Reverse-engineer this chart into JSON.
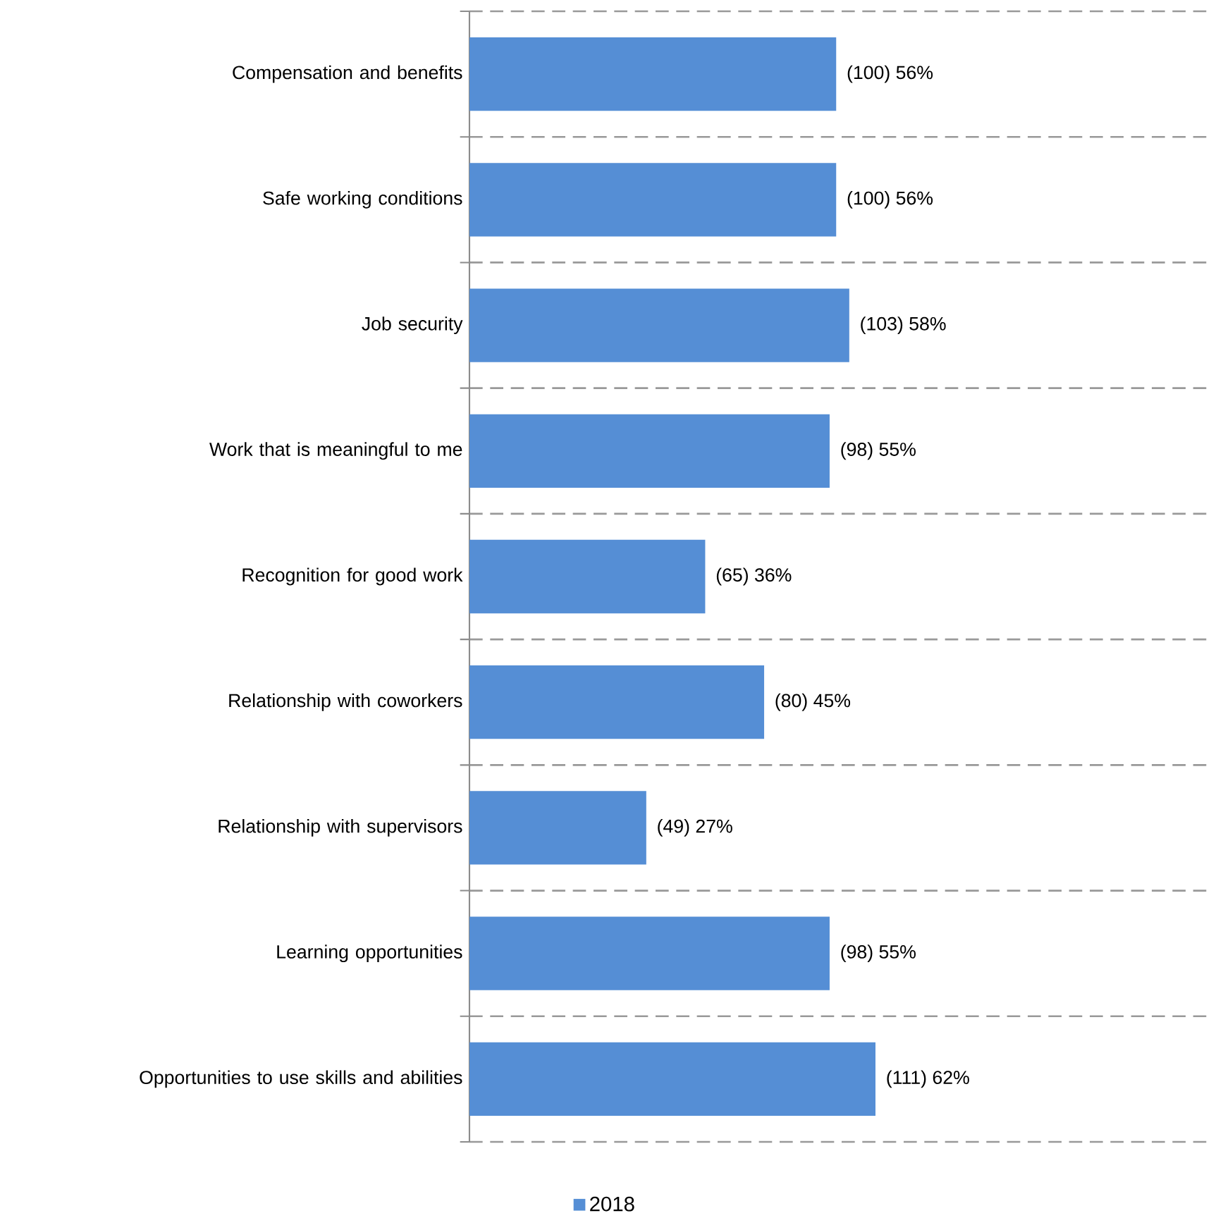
{
  "chart_data": {
    "type": "bar",
    "orientation": "horizontal",
    "categories": [
      "Compensation and benefits",
      "Safe working conditions",
      "Job security",
      "Work that is meaningful to me",
      "Recognition for good work",
      "Relationship with coworkers",
      "Relationship with supervisors",
      "Learning opportunities",
      "Opportunities to use skills and abilities"
    ],
    "series": [
      {
        "name": "2018",
        "color": "#558ed5",
        "values": [
          56,
          56,
          58,
          55,
          36,
          45,
          27,
          55,
          62
        ],
        "value_labels": [
          "(100) 56%",
          "(100) 56%",
          "(103) 58%",
          "(98) 55%",
          "(65) 36%",
          "(80) 45%",
          "(49) 27%",
          "(98) 55%",
          "(111) 62%"
        ]
      }
    ],
    "grid": "y",
    "legend": "bottom"
  }
}
